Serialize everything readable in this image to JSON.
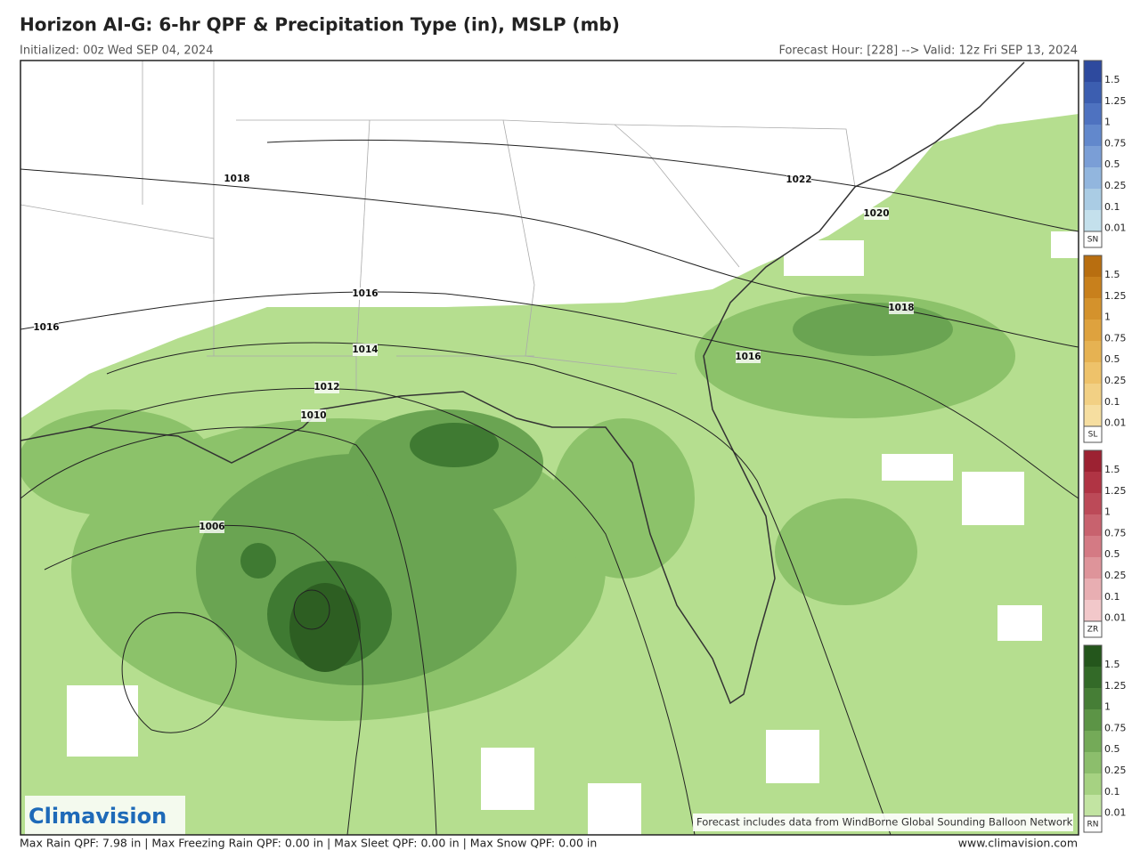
{
  "header": {
    "title": "Horizon AI-G: 6-hr QPF & Precipitation Type (in), MSLP (mb)",
    "initialized": "Initialized: 00z Wed SEP 04, 2024",
    "valid": "Forecast Hour: [228] --> Valid: 12z Fri SEP 13, 2024"
  },
  "isobar_labels": [
    "1018",
    "1022",
    "1020",
    "1016",
    "1016",
    "1014",
    "1012",
    "1010",
    "1006",
    "1016",
    "1018"
  ],
  "legend": {
    "ticks": [
      "1.5",
      "1.25",
      "1",
      "0.75",
      "0.5",
      "0.25",
      "0.1",
      "0.01"
    ],
    "bars": [
      {
        "code": "SN",
        "colors": [
          "#2e4a9e",
          "#3c5eb0",
          "#4e72c0",
          "#6288cc",
          "#7a9ed6",
          "#92b6de",
          "#aacce4",
          "#c4e0ec"
        ]
      },
      {
        "code": "SL",
        "colors": [
          "#b86e10",
          "#c8801c",
          "#d4922c",
          "#dea23e",
          "#e6b252",
          "#eec26a",
          "#f2d084",
          "#f6dea0"
        ]
      },
      {
        "code": "ZR",
        "colors": [
          "#9c2232",
          "#b03444",
          "#bc4a58",
          "#c8626e",
          "#d47a84",
          "#de949a",
          "#e8aeb2",
          "#f2c8ca"
        ]
      },
      {
        "code": "RN",
        "colors": [
          "#24561c",
          "#336a28",
          "#467e36",
          "#5c9446",
          "#74aa58",
          "#8cbe6c",
          "#a6d282",
          "#c2e4a2"
        ]
      }
    ]
  },
  "logo": "Climavision",
  "attribution": "Forecast includes data from WindBorne Global Sounding Balloon Network",
  "footer": {
    "stats": "Max Rain QPF: 7.98 in  |  Max Freezing Rain QPF: 0.00 in  |  Max Sleet QPF: 0.00 in  |  Max Snow QPF: 0.00 in",
    "website": "www.climavision.com"
  }
}
